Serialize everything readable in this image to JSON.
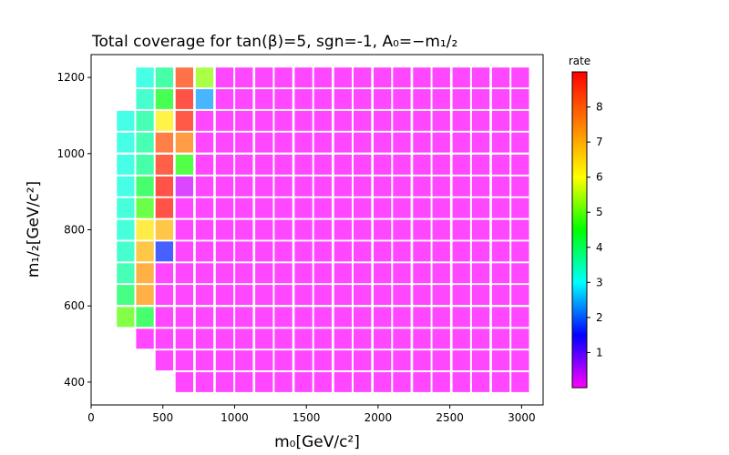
{
  "chart_data": {
    "type": "heatmap",
    "title": "Total coverage for tan(β)=5, sgn=-1, A₀=−m₁/₂",
    "xlabel": "m₀[GeV/c²]",
    "ylabel": "m₁/₂[GeV/c²]",
    "xlim": [
      0,
      3150
    ],
    "ylim": [
      340,
      1260
    ],
    "xticks": [
      "0",
      "500",
      "1000",
      "1500",
      "2000",
      "2500",
      "3000"
    ],
    "yticks": [
      "400",
      "600",
      "800",
      "1000",
      "1200"
    ],
    "colorbar": {
      "label": "rate",
      "range": [
        0,
        9
      ],
      "ticks": [
        "1",
        "2",
        "3",
        "4",
        "5",
        "6",
        "7",
        "8"
      ]
    },
    "x": [
      240,
      375,
      510,
      650,
      790,
      930,
      1065,
      1205,
      1340,
      1480,
      1615,
      1755,
      1890,
      2030,
      2165,
      2305,
      2440,
      2580,
      2715,
      2855,
      2990
    ],
    "y": [
      400,
      457,
      514,
      571,
      629,
      686,
      743,
      800,
      857,
      914,
      971,
      1029,
      1086,
      1143,
      1200
    ],
    "z": [
      [
        null,
        null,
        null,
        0,
        0,
        0,
        0,
        0,
        0,
        0,
        0,
        0,
        0,
        0,
        0,
        0,
        0,
        0,
        0,
        0,
        0
      ],
      [
        null,
        null,
        0,
        0,
        0,
        0,
        0,
        0,
        0,
        0,
        0,
        0,
        0,
        0,
        0,
        0,
        0,
        0,
        0,
        0,
        0
      ],
      [
        null,
        0,
        0,
        0,
        0,
        0,
        0,
        0,
        0,
        0,
        0,
        0,
        0,
        0,
        0,
        0,
        0,
        0,
        0,
        0,
        0
      ],
      [
        5,
        4.2,
        0,
        0,
        0,
        0,
        0,
        0,
        0,
        0,
        0,
        0,
        0,
        0,
        0,
        0,
        0,
        0,
        0,
        0,
        0
      ],
      [
        4,
        7.3,
        0,
        0,
        0,
        0,
        0,
        0,
        0,
        0,
        0,
        0,
        0,
        0,
        0,
        0,
        0,
        0,
        0,
        0,
        0
      ],
      [
        3.6,
        7.3,
        0,
        0,
        0,
        0,
        0,
        0,
        0,
        0,
        0,
        0,
        0,
        0,
        0,
        0,
        0,
        0,
        0,
        0,
        0
      ],
      [
        3.4,
        6.9,
        1.7,
        0,
        0,
        0,
        0,
        0,
        0,
        0,
        0,
        0,
        0,
        0,
        0,
        0,
        0,
        0,
        0,
        0,
        0
      ],
      [
        3.3,
        6.3,
        6.9,
        0,
        0,
        0,
        0,
        0,
        0,
        0,
        0,
        0,
        0,
        0,
        0,
        0,
        0,
        0,
        0,
        0,
        0
      ],
      [
        3.3,
        4.8,
        8.8,
        0,
        0,
        0,
        0,
        0,
        0,
        0,
        0,
        0,
        0,
        0,
        0,
        0,
        0,
        0,
        0,
        0,
        0
      ],
      [
        3.2,
        4.2,
        8.8,
        0.3,
        0,
        0,
        0,
        0,
        0,
        0,
        0,
        0,
        0,
        0,
        0,
        0,
        0,
        0,
        0,
        0,
        0
      ],
      [
        3.2,
        3.7,
        8.6,
        4.6,
        0,
        0,
        0,
        0,
        0,
        0,
        0,
        0,
        0,
        0,
        0,
        0,
        0,
        0,
        0,
        0,
        0
      ],
      [
        3.2,
        3.6,
        8.1,
        7.6,
        0,
        0,
        0,
        0,
        0,
        0,
        0,
        0,
        0,
        0,
        0,
        0,
        0,
        0,
        0,
        0,
        0
      ],
      [
        3.2,
        3.6,
        6.2,
        8.7,
        0,
        0,
        0,
        0,
        0,
        0,
        0,
        0,
        0,
        0,
        0,
        0,
        0,
        0,
        0,
        0,
        0
      ],
      [
        null,
        3.4,
        4.4,
        8.8,
        2.4,
        0,
        0,
        0,
        0,
        0,
        0,
        0,
        0,
        0,
        0,
        0,
        0,
        0,
        0,
        0,
        0
      ],
      [
        null,
        3.2,
        3.7,
        8.3,
        5.3,
        0,
        0,
        0,
        0,
        0,
        0,
        0,
        0,
        0,
        0,
        0,
        0,
        0,
        0,
        0,
        0
      ]
    ]
  }
}
